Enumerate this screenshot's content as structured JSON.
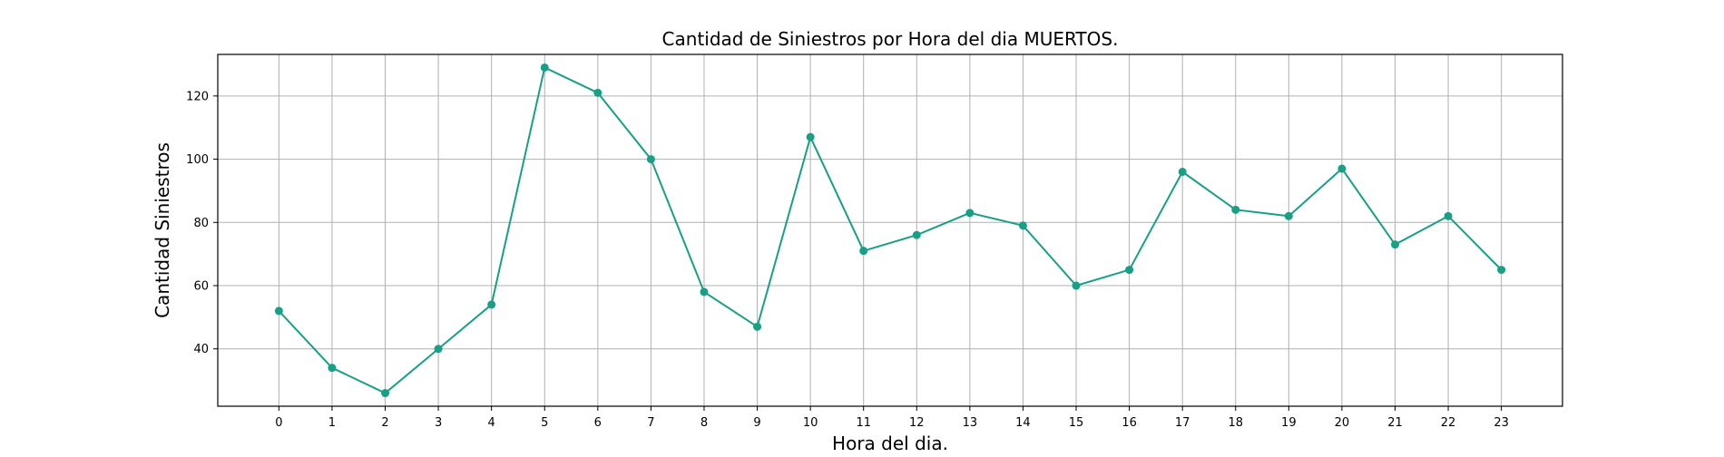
{
  "chart_data": {
    "type": "line",
    "title": "Cantidad de Siniestros por Hora del dia MUERTOS.",
    "xlabel": "Hora del dia.",
    "ylabel": "Cantidad Siniestros",
    "x": [
      0,
      1,
      2,
      3,
      4,
      5,
      6,
      7,
      8,
      9,
      10,
      11,
      12,
      13,
      14,
      15,
      16,
      17,
      18,
      19,
      20,
      21,
      22,
      23
    ],
    "x_tick_labels": [
      "0",
      "1",
      "2",
      "3",
      "4",
      "5",
      "6",
      "7",
      "8",
      "9",
      "10",
      "11",
      "12",
      "13",
      "14",
      "15",
      "16",
      "17",
      "18",
      "19",
      "20",
      "21",
      "22",
      "23"
    ],
    "values": [
      52,
      34,
      26,
      40,
      54,
      129,
      121,
      100,
      58,
      47,
      107,
      71,
      76,
      83,
      79,
      60,
      65,
      96,
      84,
      82,
      97,
      73,
      82,
      65
    ],
    "y_ticks": [
      40,
      60,
      80,
      100,
      120
    ],
    "y_tick_labels": [
      "40",
      "60",
      "80",
      "100",
      "120"
    ],
    "xlim": [
      -1.15,
      24.15
    ],
    "ylim": [
      21.85,
      133.15
    ],
    "grid": true,
    "marker": "circle",
    "colors": {
      "line": "#17a085",
      "marker": "#17a085",
      "grid": "#b0b0b0",
      "axes": "#000000"
    }
  }
}
